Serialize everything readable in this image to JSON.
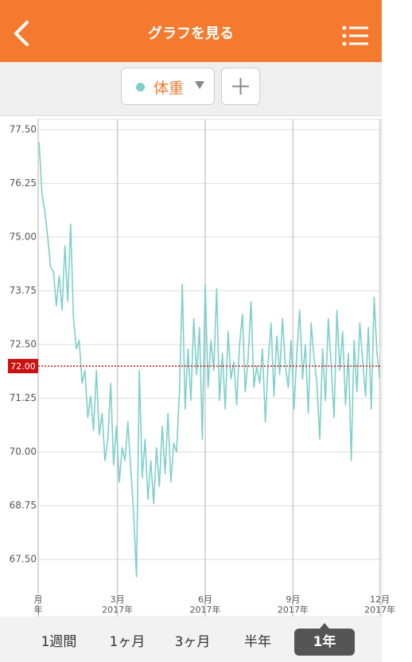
{
  "header": {
    "title": "グラフを見る"
  },
  "chart_data": {
    "type": "line",
    "series": [
      {
        "name": "体重",
        "color": "#7ecfca",
        "x": [
          1,
          4,
          7,
          10,
          13,
          16,
          19,
          22,
          25,
          28,
          31,
          34,
          37,
          40,
          43,
          46,
          49,
          52,
          55,
          58,
          61,
          64,
          67,
          70,
          73,
          76,
          79,
          82,
          85,
          88,
          91,
          94,
          97,
          100,
          103,
          106,
          109,
          112,
          115,
          118,
          121,
          124,
          127,
          130,
          133,
          136,
          139,
          142,
          145,
          148,
          151,
          154,
          157,
          160,
          163,
          166,
          169,
          172,
          175,
          178,
          181,
          184,
          187,
          190,
          193,
          196,
          199,
          202,
          205,
          208,
          211,
          214,
          217,
          220,
          223,
          226,
          229,
          232,
          235,
          238,
          241,
          244,
          247,
          250,
          253,
          256,
          259,
          262,
          265,
          268,
          271,
          274,
          277,
          280,
          283,
          286,
          289,
          292,
          295,
          298,
          301,
          304,
          307,
          310,
          313,
          316,
          319,
          322,
          325,
          328,
          331,
          334,
          337,
          340,
          343,
          346,
          349,
          352,
          355,
          358
        ],
        "values": [
          77.2,
          76.0,
          75.6,
          75.0,
          74.3,
          74.2,
          73.4,
          74.1,
          73.3,
          74.8,
          73.5,
          75.3,
          73.1,
          72.4,
          72.6,
          71.6,
          71.9,
          70.8,
          71.3,
          70.5,
          71.9,
          70.4,
          70.9,
          69.8,
          70.3,
          71.6,
          69.7,
          70.6,
          69.3,
          70.1,
          69.8,
          70.7,
          69.6,
          68.6,
          67.1,
          71.9,
          69.4,
          70.3,
          68.9,
          69.8,
          68.8,
          70.1,
          69.2,
          70.6,
          69.5,
          70.9,
          69.3,
          70.2,
          70.0,
          71.4,
          73.9,
          71.0,
          72.4,
          71.2,
          73.1,
          71.8,
          72.9,
          70.3,
          73.9,
          71.5,
          72.6,
          71.9,
          73.8,
          71.2,
          72.3,
          71.0,
          72.8,
          71.7,
          72.1,
          71.1,
          72.5,
          73.2,
          71.4,
          72.2,
          73.5,
          71.5,
          72.0,
          71.6,
          72.4,
          70.7,
          72.1,
          73.0,
          71.3,
          72.7,
          71.8,
          73.1,
          72.0,
          71.5,
          72.6,
          71.0,
          72.3,
          73.3,
          71.7,
          72.5,
          70.9,
          73.0,
          72.2,
          71.6,
          70.3,
          72.4,
          71.2,
          73.1,
          72.0,
          70.8,
          73.3,
          71.9,
          72.8,
          71.1,
          72.3,
          69.8,
          72.6,
          71.4,
          73.0,
          72.1,
          71.3,
          72.9,
          71.0,
          73.6,
          72.3,
          71.7
        ]
      }
    ],
    "xlim": [
      0,
      360
    ],
    "xticks": [
      {
        "value": 0,
        "label": "月\n年"
      },
      {
        "value": 83,
        "label": "3月\n2017年"
      },
      {
        "value": 175,
        "label": "6月\n2017年"
      },
      {
        "value": 267,
        "label": "9月\n2017年"
      },
      {
        "value": 358,
        "label": "12月\n2017年"
      }
    ],
    "ylim": [
      66.17,
      77.74
    ],
    "yticks": [
      {
        "value": 67.5,
        "label": "67.50"
      },
      {
        "value": 68.75,
        "label": "68.75"
      },
      {
        "value": 70,
        "label": "70.00"
      },
      {
        "value": 71.25,
        "label": "71.25"
      },
      {
        "value": 72.5,
        "label": "72.50"
      },
      {
        "value": 73.75,
        "label": "73.75"
      },
      {
        "value": 75,
        "label": "75.00"
      },
      {
        "value": 76.25,
        "label": "76.25"
      },
      {
        "value": 77.5,
        "label": "77.50"
      }
    ],
    "reference_line": {
      "value": 72,
      "label": "72.00",
      "color": "#cc1111"
    },
    "grid": true
  },
  "tabs": [
    "1週間",
    "1ヶ月",
    "3ヶ月",
    "半年",
    "1年"
  ],
  "active_tab": 4
}
